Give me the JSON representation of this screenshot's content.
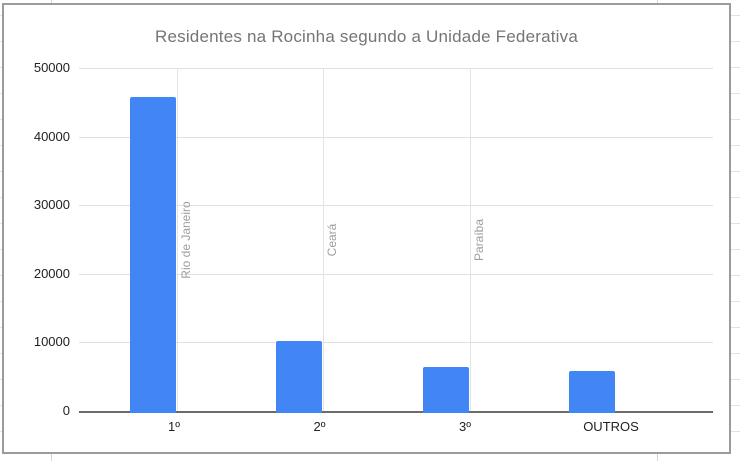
{
  "app": {
    "context": "spreadsheet-chart-widget"
  },
  "chart_data": {
    "type": "bar",
    "title": "Residentes na Rocinha segundo a Unidade Federativa",
    "categories": [
      "1º",
      "2º",
      "3º",
      "OUTROS"
    ],
    "values": [
      45700,
      10250,
      6350,
      5800
    ],
    "annotations": [
      "Rio de Janeiro",
      "Ceará",
      "Paraíba",
      null
    ],
    "xlabel": "",
    "ylabel": "",
    "ylim": [
      0,
      50000
    ],
    "yticks": [
      0,
      10000,
      20000,
      30000,
      40000,
      50000
    ],
    "legend_position": "none",
    "grid": "horizontal-major",
    "colors": {
      "bar": "#4285f4",
      "title": "#757575",
      "tick_label": "#222222",
      "annotation_text": "#9e9e9e",
      "annotation_stem": "#e3e3e3",
      "gridline": "#e0e0e0",
      "axis_line": "#6b6b6b",
      "card_border": "#9b9b9b",
      "sheet_line": "#d4d4d4"
    }
  }
}
